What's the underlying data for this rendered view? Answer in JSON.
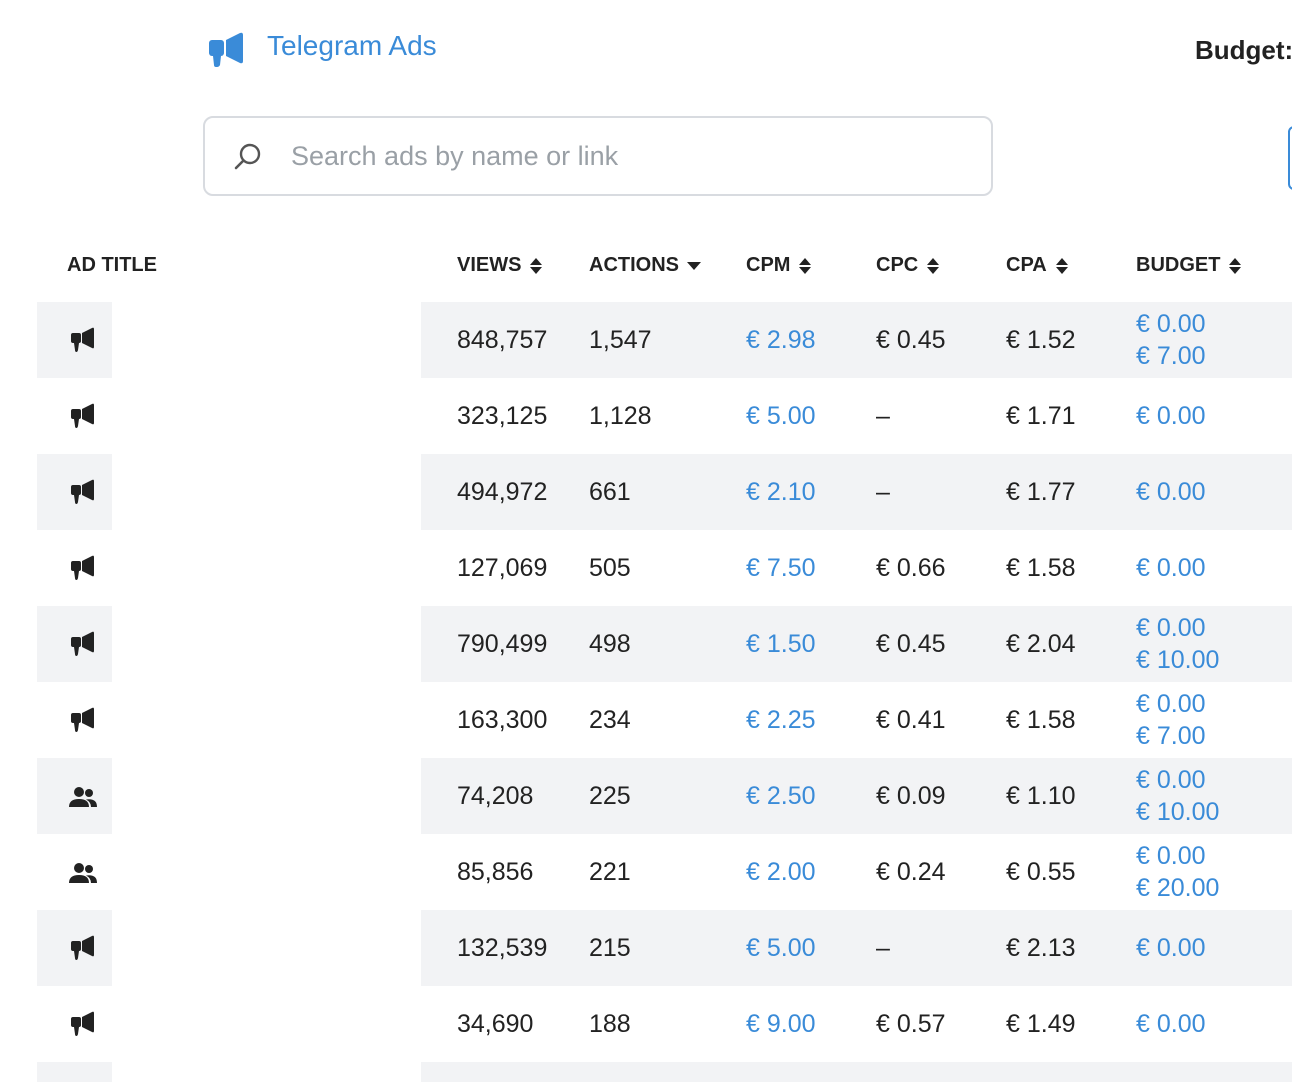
{
  "header": {
    "app_title": "Telegram Ads",
    "budget_label": "Budget:",
    "brand_color": "#3a8bd8",
    "logo_icon": "megaphone-icon"
  },
  "search": {
    "placeholder": "Search ads by name or link",
    "value": "",
    "icon": "search-icon"
  },
  "table": {
    "columns": [
      {
        "key": "title",
        "label": "AD TITLE",
        "sort": "none"
      },
      {
        "key": "views",
        "label": "VIEWS",
        "sort": "both"
      },
      {
        "key": "actions",
        "label": "ACTIONS",
        "sort": "desc"
      },
      {
        "key": "cpm",
        "label": "CPM",
        "sort": "both"
      },
      {
        "key": "cpc",
        "label": "CPC",
        "sort": "both"
      },
      {
        "key": "cpa",
        "label": "CPA",
        "sort": "both"
      },
      {
        "key": "budget",
        "label": "BUDGET",
        "sort": "both"
      }
    ],
    "rows": [
      {
        "icon": "megaphone-icon",
        "views": "848,757",
        "actions": "1,547",
        "cpm": "€ 2.98",
        "cpc": "€ 0.45",
        "cpa": "€ 1.52",
        "budget": [
          "€ 0.00",
          "€ 7.00"
        ]
      },
      {
        "icon": "megaphone-icon",
        "views": "323,125",
        "actions": "1,128",
        "cpm": "€ 5.00",
        "cpc": "–",
        "cpa": "€ 1.71",
        "budget": [
          "€ 0.00"
        ]
      },
      {
        "icon": "megaphone-icon",
        "views": "494,972",
        "actions": "661",
        "cpm": "€ 2.10",
        "cpc": "–",
        "cpa": "€ 1.77",
        "budget": [
          "€ 0.00"
        ]
      },
      {
        "icon": "megaphone-icon",
        "views": "127,069",
        "actions": "505",
        "cpm": "€ 7.50",
        "cpc": "€ 0.66",
        "cpa": "€ 1.58",
        "budget": [
          "€ 0.00"
        ]
      },
      {
        "icon": "megaphone-icon",
        "views": "790,499",
        "actions": "498",
        "cpm": "€ 1.50",
        "cpc": "€ 0.45",
        "cpa": "€ 2.04",
        "budget": [
          "€ 0.00",
          "€ 10.00"
        ]
      },
      {
        "icon": "megaphone-icon",
        "views": "163,300",
        "actions": "234",
        "cpm": "€ 2.25",
        "cpc": "€ 0.41",
        "cpa": "€ 1.58",
        "budget": [
          "€ 0.00",
          "€ 7.00"
        ]
      },
      {
        "icon": "users-icon",
        "views": "74,208",
        "actions": "225",
        "cpm": "€ 2.50",
        "cpc": "€ 0.09",
        "cpa": "€ 1.10",
        "budget": [
          "€ 0.00",
          "€ 10.00"
        ]
      },
      {
        "icon": "users-icon",
        "views": "85,856",
        "actions": "221",
        "cpm": "€ 2.00",
        "cpc": "€ 0.24",
        "cpa": "€ 0.55",
        "budget": [
          "€ 0.00",
          "€ 20.00"
        ]
      },
      {
        "icon": "megaphone-icon",
        "views": "132,539",
        "actions": "215",
        "cpm": "€ 5.00",
        "cpc": "–",
        "cpa": "€ 2.13",
        "budget": [
          "€ 0.00"
        ]
      },
      {
        "icon": "megaphone-icon",
        "views": "34,690",
        "actions": "188",
        "cpm": "€ 9.00",
        "cpc": "€ 0.57",
        "cpa": "€ 1.49",
        "budget": [
          "€ 0.00"
        ]
      }
    ]
  }
}
